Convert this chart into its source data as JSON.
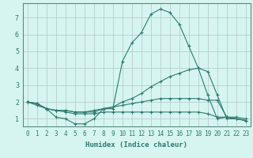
{
  "xlabel": "Humidex (Indice chaleur)",
  "background_color": "#d6f5f0",
  "grid_color": "#b8cece",
  "line_color": "#2d7a6e",
  "axis_color": "#5a8a82",
  "x_ticks": [
    0,
    1,
    2,
    3,
    4,
    5,
    6,
    7,
    8,
    9,
    10,
    11,
    12,
    13,
    14,
    15,
    16,
    17,
    18,
    19,
    20,
    21,
    22,
    23
  ],
  "y_ticks": [
    1,
    2,
    3,
    4,
    5,
    6,
    7
  ],
  "ylim": [
    0.55,
    7.85
  ],
  "xlim": [
    -0.5,
    23.5
  ],
  "line1_y": [
    2.0,
    1.9,
    1.6,
    1.1,
    1.0,
    0.7,
    0.7,
    1.0,
    1.6,
    1.6,
    4.4,
    5.5,
    6.1,
    7.2,
    7.5,
    7.3,
    6.6,
    5.3,
    4.0,
    2.4,
    1.0,
    1.1,
    1.0,
    0.9
  ],
  "line2_y": [
    2.0,
    1.8,
    1.6,
    1.5,
    1.5,
    1.4,
    1.4,
    1.4,
    1.6,
    1.7,
    2.0,
    2.2,
    2.5,
    2.9,
    3.2,
    3.5,
    3.7,
    3.9,
    4.0,
    3.8,
    2.4,
    1.0,
    1.0,
    0.9
  ],
  "line3_y": [
    2.0,
    1.9,
    1.6,
    1.5,
    1.5,
    1.4,
    1.4,
    1.5,
    1.6,
    1.7,
    1.8,
    1.9,
    2.0,
    2.1,
    2.2,
    2.2,
    2.2,
    2.2,
    2.2,
    2.1,
    2.1,
    1.1,
    1.1,
    1.0
  ],
  "line4_y": [
    2.0,
    1.9,
    1.6,
    1.5,
    1.4,
    1.3,
    1.3,
    1.3,
    1.4,
    1.4,
    1.4,
    1.4,
    1.4,
    1.4,
    1.4,
    1.4,
    1.4,
    1.4,
    1.4,
    1.3,
    1.1,
    1.1,
    1.0,
    0.9
  ],
  "tick_fontsize": 5.5,
  "xlabel_fontsize": 6.5,
  "marker_size": 3.0,
  "line_width": 0.8
}
